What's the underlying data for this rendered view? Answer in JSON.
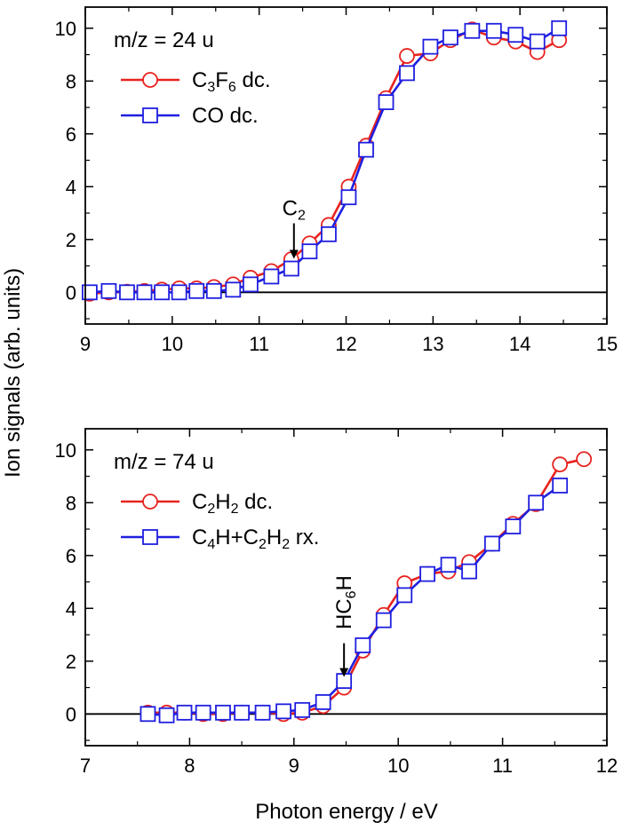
{
  "figure": {
    "ylabel": "Ion signals (arb. units)",
    "xlabel": "Photon energy / eV"
  },
  "chart_data": [
    {
      "type": "line",
      "title": "m/z = 24 u",
      "xlim": [
        9,
        15
      ],
      "ylim": [
        -1.2,
        10.8
      ],
      "xticks": [
        9,
        10,
        11,
        12,
        13,
        14,
        15
      ],
      "yticks": [
        0,
        2,
        4,
        6,
        8,
        10
      ],
      "legend_placement": "top-left",
      "annotation": {
        "base": "C",
        "sub": "2",
        "x": 11.4,
        "y": 1.0
      },
      "series": [
        {
          "name_parts": [
            [
              "C",
              ""
            ],
            [
              "3",
              "sub"
            ],
            [
              "F",
              ""
            ],
            [
              "6",
              "sub"
            ],
            [
              " dc.",
              ""
            ]
          ],
          "color": "#e8231f",
          "marker": "circle",
          "x": [
            9.05,
            9.27,
            9.48,
            9.68,
            9.88,
            10.08,
            10.28,
            10.48,
            10.7,
            10.9,
            11.14,
            11.37,
            11.58,
            11.8,
            12.03,
            12.23,
            12.46,
            12.7,
            12.97,
            13.2,
            13.45,
            13.7,
            13.95,
            14.2,
            14.45
          ],
          "y": [
            -0.05,
            0.0,
            0.02,
            0.05,
            0.1,
            0.15,
            0.15,
            0.2,
            0.3,
            0.55,
            0.8,
            1.25,
            1.85,
            2.55,
            4.0,
            5.55,
            7.35,
            8.95,
            9.05,
            9.55,
            9.95,
            9.65,
            9.5,
            9.1,
            9.55
          ]
        },
        {
          "name_parts": [
            [
              "CO dc.",
              ""
            ]
          ],
          "color": "#1f1fe0",
          "marker": "square",
          "x": [
            9.05,
            9.27,
            9.48,
            9.68,
            9.88,
            10.08,
            10.28,
            10.48,
            10.7,
            10.9,
            11.14,
            11.37,
            11.58,
            11.8,
            12.03,
            12.23,
            12.46,
            12.7,
            12.97,
            13.2,
            13.45,
            13.7,
            13.95,
            14.2,
            14.45
          ],
          "y": [
            0.0,
            0.05,
            0.0,
            0.0,
            0.0,
            0.0,
            0.05,
            0.05,
            0.1,
            0.3,
            0.6,
            0.9,
            1.55,
            2.2,
            3.6,
            5.4,
            7.2,
            8.3,
            9.3,
            9.65,
            9.9,
            9.9,
            9.75,
            9.5,
            10.0
          ]
        }
      ]
    },
    {
      "type": "line",
      "title": "m/z = 74 u",
      "xlim": [
        7,
        12
      ],
      "ylim": [
        -1.2,
        10.8
      ],
      "xticks": [
        7,
        8,
        9,
        10,
        11,
        12
      ],
      "yticks": [
        0,
        2,
        4,
        6,
        8,
        10
      ],
      "legend_placement": "top-left",
      "annotation": {
        "base": "HC",
        "sub": "6",
        "tail": "H",
        "x": 9.48,
        "y": 1.2
      },
      "series": [
        {
          "name_parts": [
            [
              "C",
              ""
            ],
            [
              "2",
              "sub"
            ],
            [
              "H",
              ""
            ],
            [
              "2",
              "sub"
            ],
            [
              " dc.",
              ""
            ]
          ],
          "color": "#e8231f",
          "marker": "circle",
          "x": [
            7.6,
            7.78,
            7.95,
            8.13,
            8.32,
            8.5,
            8.7,
            8.9,
            9.08,
            9.28,
            9.48,
            9.66,
            9.86,
            10.06,
            10.28,
            10.48,
            10.68,
            10.9,
            11.1,
            11.32,
            11.55,
            11.78
          ],
          "y": [
            0.05,
            0.05,
            0.05,
            0.0,
            0.0,
            0.05,
            0.05,
            0.0,
            0.05,
            0.3,
            1.0,
            2.4,
            3.75,
            4.95,
            5.3,
            5.4,
            5.75,
            6.45,
            7.2,
            7.95,
            9.45,
            9.65
          ]
        },
        {
          "name_parts": [
            [
              "C",
              ""
            ],
            [
              "4",
              "sub"
            ],
            [
              "H+C",
              ""
            ],
            [
              "2",
              "sub"
            ],
            [
              "H",
              ""
            ],
            [
              "2",
              "sub"
            ],
            [
              " rx.",
              ""
            ]
          ],
          "color": "#1f1fe0",
          "marker": "square",
          "x": [
            7.6,
            7.78,
            7.95,
            8.13,
            8.32,
            8.5,
            8.7,
            8.9,
            9.08,
            9.28,
            9.48,
            9.66,
            9.86,
            10.06,
            10.28,
            10.48,
            10.68,
            10.9,
            11.1,
            11.32,
            11.55
          ],
          "y": [
            0.0,
            -0.05,
            0.05,
            0.05,
            0.05,
            0.05,
            0.05,
            0.1,
            0.15,
            0.45,
            1.25,
            2.6,
            3.55,
            4.5,
            5.3,
            5.65,
            5.4,
            6.45,
            7.1,
            8.0,
            8.65
          ]
        }
      ]
    }
  ]
}
